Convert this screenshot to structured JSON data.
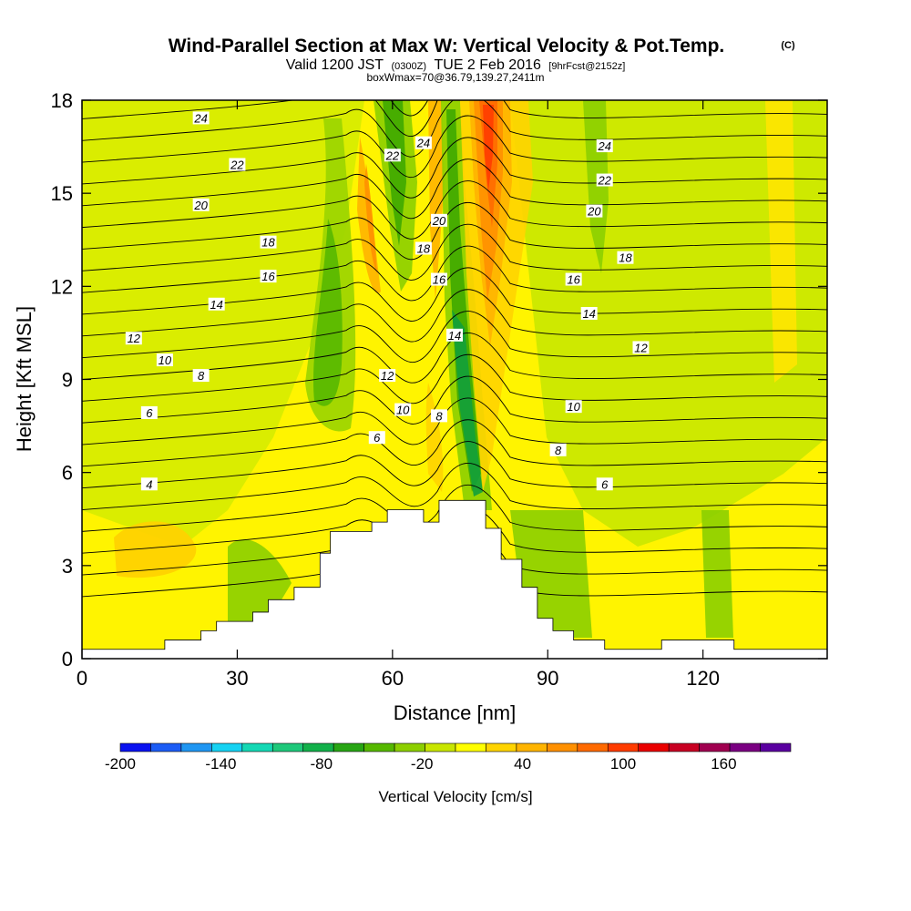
{
  "title": {
    "main": "Wind-Parallel Section at Max W: Vertical Velocity & Pot.Temp.",
    "copyright": "(C)",
    "line2_a": "Valid 1200 JST",
    "line2_b": "(0300Z)",
    "line2_c": "TUE 2 Feb 2016",
    "line2_d": "[9hrFcst@2152z]",
    "line3": "boxWmax=70@36.79,139.27,2411m"
  },
  "chart_data": {
    "type": "heatmap",
    "xlabel": "Distance [nm]",
    "ylabel": "Height [Kft MSL]",
    "xlim": [
      0,
      144
    ],
    "ylim": [
      0,
      18
    ],
    "xticks": [
      0,
      30,
      60,
      90,
      120
    ],
    "yticks": [
      0,
      3,
      6,
      9,
      12,
      15,
      18
    ],
    "colorbar": {
      "label": "Vertical Velocity [cm/s]",
      "tick_values": [
        -200,
        -140,
        -80,
        -20,
        40,
        100,
        160
      ],
      "range": [
        -200,
        200
      ],
      "colors": [
        "#0a12f0",
        "#1c5cf5",
        "#1f96f2",
        "#16d2f2",
        "#14d8b4",
        "#1ec87a",
        "#12b04a",
        "#28a514",
        "#56b800",
        "#8ccf00",
        "#c8e600",
        "#ffff00",
        "#ffd400",
        "#ffb400",
        "#ff9000",
        "#ff6a00",
        "#ff3c00",
        "#ea0000",
        "#c80022",
        "#a00050",
        "#7a0082",
        "#5a00a0"
      ]
    },
    "terrain_profile": [
      [
        0,
        0.3
      ],
      [
        16,
        0.3
      ],
      [
        16,
        0.6
      ],
      [
        23,
        0.6
      ],
      [
        23,
        0.9
      ],
      [
        26,
        0.9
      ],
      [
        26,
        1.2
      ],
      [
        33,
        1.2
      ],
      [
        33,
        1.5
      ],
      [
        36,
        1.5
      ],
      [
        36,
        1.9
      ],
      [
        41,
        1.9
      ],
      [
        41,
        2.3
      ],
      [
        46,
        2.3
      ],
      [
        46,
        2.6
      ],
      [
        46,
        3.0
      ],
      [
        46,
        3.4
      ],
      [
        48,
        3.4
      ],
      [
        48,
        4.1
      ],
      [
        56,
        4.1
      ],
      [
        56,
        4.4
      ],
      [
        59,
        4.4
      ],
      [
        59,
        4.8
      ],
      [
        66,
        4.8
      ],
      [
        66,
        4.4
      ],
      [
        69,
        4.4
      ],
      [
        69,
        5.1
      ],
      [
        78,
        5.1
      ],
      [
        78,
        4.2
      ],
      [
        81,
        4.2
      ],
      [
        81,
        3.2
      ],
      [
        85,
        3.2
      ],
      [
        85,
        2.3
      ],
      [
        88,
        2.3
      ],
      [
        88,
        1.3
      ],
      [
        91,
        1.3
      ],
      [
        91,
        0.9
      ],
      [
        95,
        0.9
      ],
      [
        95,
        0.6
      ],
      [
        101,
        0.6
      ],
      [
        101,
        0.3
      ],
      [
        112,
        0.3
      ],
      [
        112,
        0.6
      ],
      [
        126,
        0.6
      ],
      [
        126,
        0.3
      ],
      [
        144,
        0.3
      ]
    ],
    "theta_contour_labels": [
      {
        "text": "24",
        "x": 23,
        "y": 17.4
      },
      {
        "text": "22",
        "x": 30,
        "y": 15.9
      },
      {
        "text": "20",
        "x": 23,
        "y": 14.6
      },
      {
        "text": "18",
        "x": 36,
        "y": 13.4
      },
      {
        "text": "16",
        "x": 36,
        "y": 12.3
      },
      {
        "text": "14",
        "x": 26,
        "y": 11.4
      },
      {
        "text": "12",
        "x": 10,
        "y": 10.3
      },
      {
        "text": "10",
        "x": 16,
        "y": 9.6
      },
      {
        "text": "8",
        "x": 23,
        "y": 9.1
      },
      {
        "text": "6",
        "x": 13,
        "y": 7.9
      },
      {
        "text": "4",
        "x": 13,
        "y": 5.6
      },
      {
        "text": "22",
        "x": 60,
        "y": 16.2
      },
      {
        "text": "24",
        "x": 66,
        "y": 16.6
      },
      {
        "text": "20",
        "x": 69,
        "y": 14.1
      },
      {
        "text": "18",
        "x": 66,
        "y": 13.2
      },
      {
        "text": "16",
        "x": 69,
        "y": 12.2
      },
      {
        "text": "14",
        "x": 72,
        "y": 10.4
      },
      {
        "text": "12",
        "x": 59,
        "y": 9.1
      },
      {
        "text": "10",
        "x": 62,
        "y": 8.0
      },
      {
        "text": "8",
        "x": 69,
        "y": 7.8
      },
      {
        "text": "6",
        "x": 57,
        "y": 7.1
      },
      {
        "text": "24",
        "x": 101,
        "y": 16.5
      },
      {
        "text": "22",
        "x": 101,
        "y": 15.4
      },
      {
        "text": "20",
        "x": 99,
        "y": 14.4
      },
      {
        "text": "18",
        "x": 105,
        "y": 12.9
      },
      {
        "text": "16",
        "x": 95,
        "y": 12.2
      },
      {
        "text": "14",
        "x": 98,
        "y": 11.1
      },
      {
        "text": "12",
        "x": 108,
        "y": 10.0
      },
      {
        "text": "10",
        "x": 95,
        "y": 8.1
      },
      {
        "text": "8",
        "x": 92,
        "y": 6.7
      },
      {
        "text": "6",
        "x": 101,
        "y": 5.6
      }
    ]
  }
}
